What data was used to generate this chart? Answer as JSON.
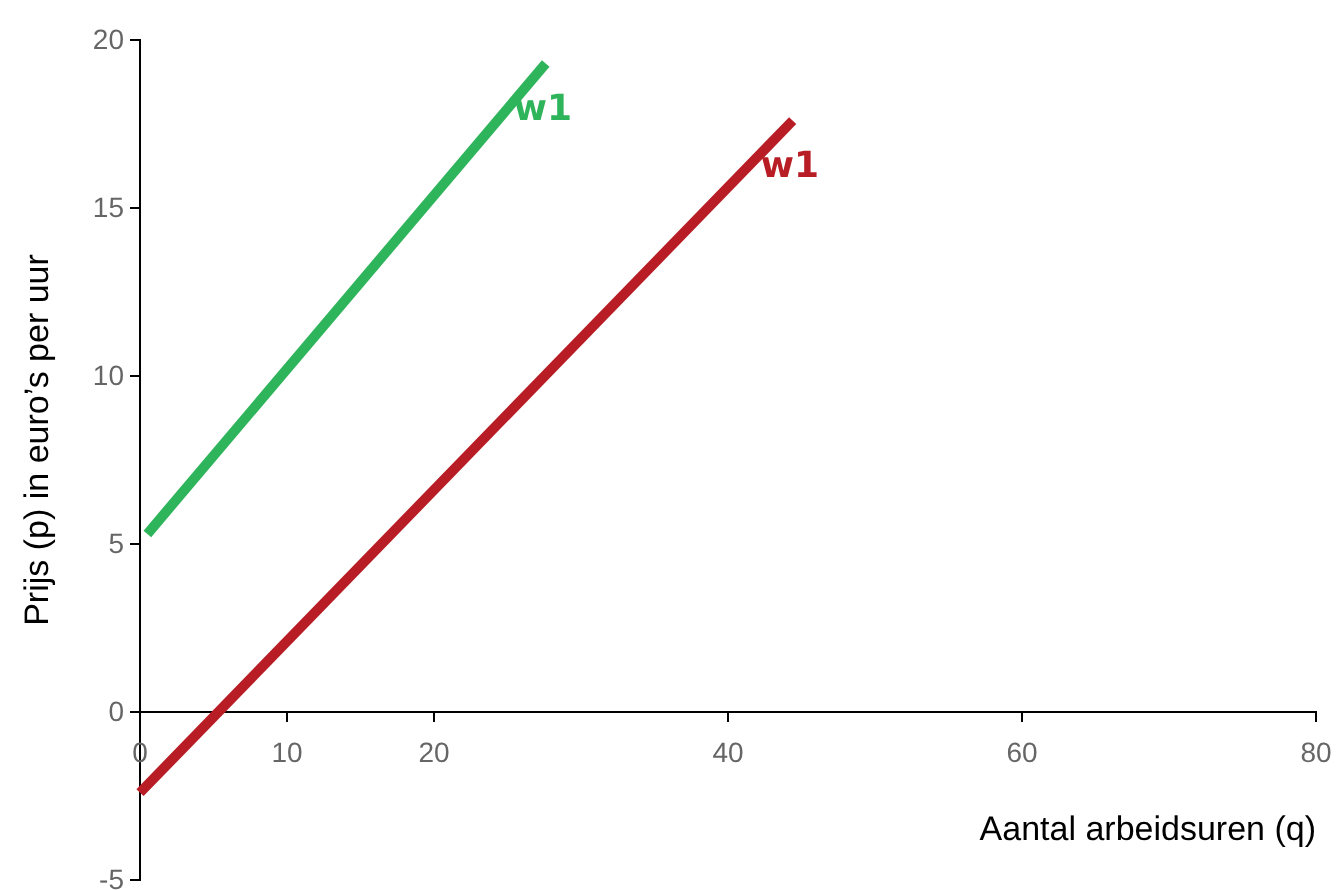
{
  "chart_data": {
    "type": "line",
    "xlabel": "Aantal arbeidsuren (q)",
    "ylabel": "Prijs  (p) in euro’s per uur",
    "xlim": [
      0,
      80
    ],
    "xticks": [
      0,
      10,
      20,
      40,
      60,
      80
    ],
    "ylim": [
      -5,
      20
    ],
    "yticks": [
      -5,
      0,
      5,
      10,
      15,
      20
    ],
    "grid": false,
    "marker": "none",
    "line_style": "solid",
    "series": [
      {
        "name": "w1",
        "color": "#2eb45a",
        "x": [
          0.5,
          27.6
        ],
        "values": [
          5.3,
          19.3
        ]
      },
      {
        "name": "w1",
        "color": "#b81c24",
        "x": [
          0,
          44.4
        ],
        "values": [
          -2.4,
          17.6
        ]
      }
    ]
  }
}
